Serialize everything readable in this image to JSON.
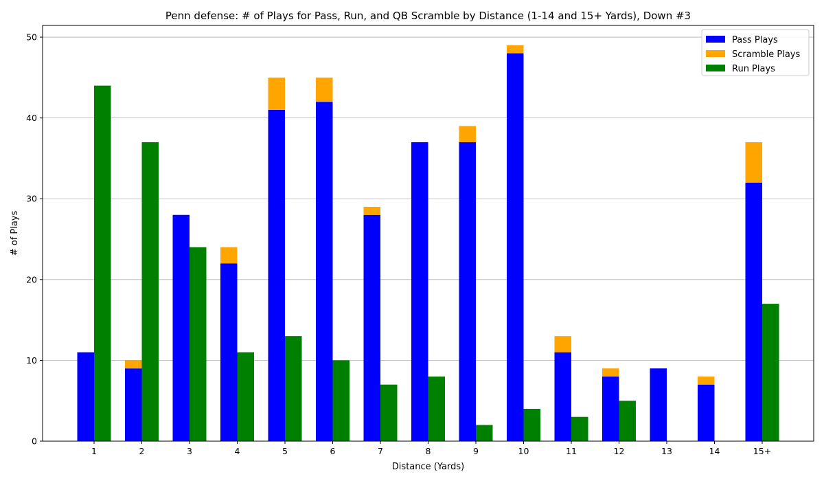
{
  "chart_data": {
    "type": "bar",
    "title": "Penn defense: # of Plays for Pass, Run, and QB Scramble by Distance (1-14 and 15+ Yards), Down #3",
    "xlabel": "Distance (Yards)",
    "ylabel": "# of Plays",
    "categories": [
      "1",
      "2",
      "3",
      "4",
      "5",
      "6",
      "7",
      "8",
      "9",
      "10",
      "11",
      "12",
      "13",
      "14",
      "15+"
    ],
    "ylim": [
      0,
      51.45
    ],
    "yticks": [
      0,
      10,
      20,
      30,
      40,
      50
    ],
    "grid": "horizontal",
    "legend_position": "top-right",
    "series": [
      {
        "name": "Pass Plays",
        "color": "#0000ff",
        "stack": "pass",
        "values": [
          11,
          9,
          28,
          22,
          41,
          42,
          28,
          37,
          37,
          48,
          11,
          8,
          9,
          7,
          32
        ]
      },
      {
        "name": "Scramble Plays",
        "color": "#ffa500",
        "stack": "pass",
        "values": [
          0,
          1,
          0,
          2,
          4,
          3,
          1,
          0,
          2,
          1,
          2,
          1,
          0,
          1,
          5
        ]
      },
      {
        "name": "Run Plays",
        "color": "#008000",
        "stack": "run",
        "values": [
          44,
          37,
          24,
          11,
          13,
          10,
          7,
          8,
          2,
          4,
          3,
          5,
          0,
          0,
          17
        ]
      }
    ]
  }
}
